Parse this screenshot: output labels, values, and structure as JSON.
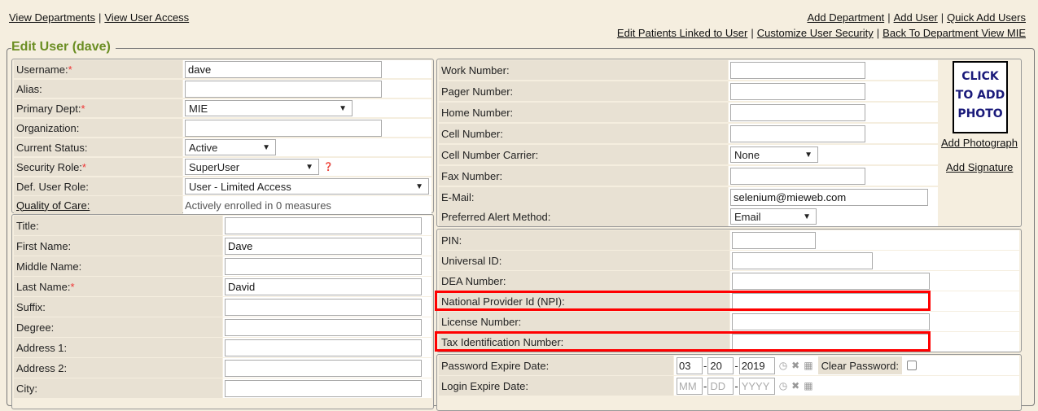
{
  "nav_left": [
    "View Departments",
    "View User Access"
  ],
  "nav_right_1": [
    "Add Department",
    "Add User",
    "Quick Add Users"
  ],
  "nav_right_2": [
    "Edit Patients Linked to User",
    "Customize User Security",
    "Back To Department View MIE"
  ],
  "legend": "Edit User (dave)",
  "account": [
    {
      "label": "Username:",
      "required": true,
      "type": "input",
      "value": "dave",
      "w": 242
    },
    {
      "label": "Alias:",
      "type": "input",
      "value": "",
      "w": 242
    },
    {
      "label": "Primary Dept:",
      "required": true,
      "type": "select",
      "value": "MIE",
      "w": 206
    },
    {
      "label": "Organization:",
      "type": "input",
      "value": "",
      "w": 242
    },
    {
      "label": "Current Status:",
      "type": "select",
      "value": "Active",
      "w": 112
    },
    {
      "label": "Security Role:",
      "required": true,
      "type": "select",
      "value": "SuperUser",
      "w": 165,
      "help": true
    },
    {
      "label": "Def. User Role:",
      "type": "select",
      "value": "User - Limited Access",
      "w": 300
    },
    {
      "label": "Quality of Care:",
      "link": true,
      "type": "text",
      "value": "Actively enrolled in 0 measures"
    }
  ],
  "personal": [
    {
      "label": "Title:",
      "value": ""
    },
    {
      "label": "First Name:",
      "value": "Dave"
    },
    {
      "label": "Middle Name:",
      "value": ""
    },
    {
      "label": "Last Name:",
      "required": true,
      "value": "David"
    },
    {
      "label": "Suffix:",
      "value": ""
    },
    {
      "label": "Degree:",
      "value": ""
    },
    {
      "label": "Address 1:",
      "value": ""
    },
    {
      "label": "Address 2:",
      "value": ""
    },
    {
      "label": "City:",
      "value": ""
    }
  ],
  "contact": [
    {
      "label": "Work Number:",
      "type": "input",
      "value": "",
      "w": 166
    },
    {
      "label": "Pager Number:",
      "type": "input",
      "value": "",
      "w": 166
    },
    {
      "label": "Home Number:",
      "type": "input",
      "value": "",
      "w": 166
    },
    {
      "label": "Cell Number:",
      "type": "input",
      "value": "",
      "w": 166
    },
    {
      "label": "Cell Number Carrier:",
      "type": "select",
      "value": "None",
      "w": 108
    },
    {
      "label": "Fax Number:",
      "type": "input",
      "value": "",
      "w": 166
    },
    {
      "label": "E-Mail:",
      "type": "input",
      "value": "selenium@mieweb.com",
      "w": 243
    },
    {
      "label": "Preferred Alert Method:",
      "type": "select",
      "value": "Email",
      "w": 106
    }
  ],
  "photo": {
    "text": [
      "CLICK",
      "TO ADD",
      "PHOTO"
    ],
    "add_photo": "Add Photograph",
    "add_signature": "Add Signature"
  },
  "ids": [
    {
      "label": "PIN:",
      "value": "",
      "w": 103
    },
    {
      "label": "Universal ID:",
      "value": "",
      "w": 173
    },
    {
      "label": "DEA Number:",
      "value": "",
      "w": 243
    },
    {
      "label": "National Provider Id (NPI):",
      "value": "",
      "w": 243,
      "highlight": true
    },
    {
      "label": "License Number:",
      "value": "",
      "w": 243
    },
    {
      "label": "Tax Identification Number:",
      "value": "",
      "w": 243,
      "highlight": true
    }
  ],
  "dates": [
    {
      "label": "Password Expire Date:",
      "mm": "03",
      "dd": "20",
      "yyyy": "2019",
      "clear_label": "Clear Password:",
      "clear_checked": false
    },
    {
      "label": "Login Expire Date:",
      "mm": "",
      "dd": "",
      "yyyy": "",
      "ph_mm": "MM",
      "ph_dd": "DD",
      "ph_yyyy": "YYYY"
    }
  ],
  "colors": {
    "legend": "#6b8e23",
    "highlight": "#ff0000",
    "label_bg": "#e8e1d3",
    "page_bg": "#f5eedf"
  }
}
